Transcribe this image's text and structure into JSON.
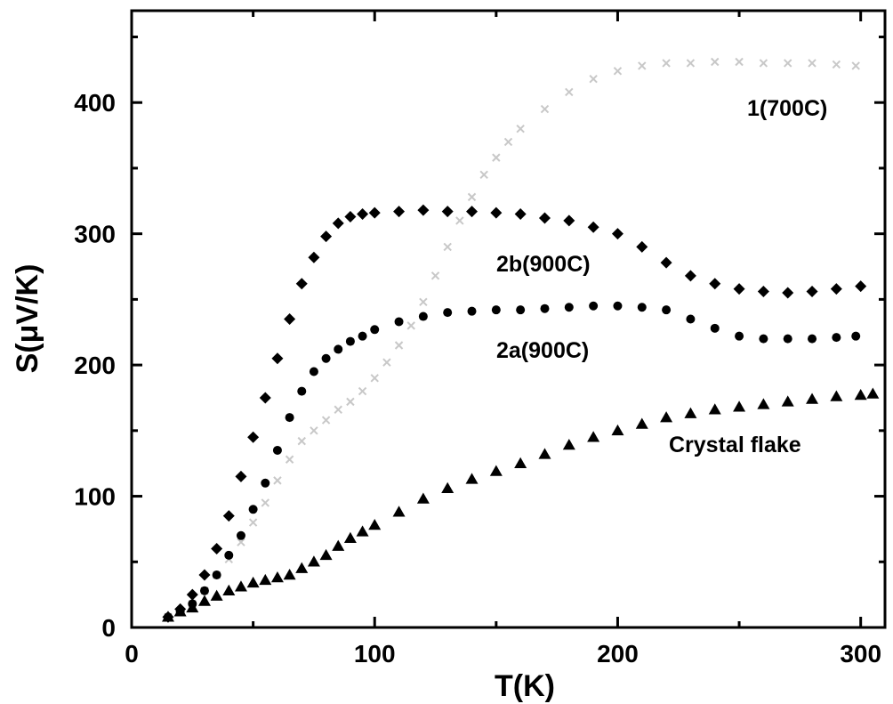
{
  "chart_data": {
    "type": "scatter",
    "title": "",
    "xlabel": "T(K)",
    "ylabel": "S(μV/K)",
    "xlim": [
      0,
      310
    ],
    "ylim": [
      0,
      470
    ],
    "xticks": [
      0,
      100,
      200,
      300
    ],
    "yticks": [
      0,
      100,
      200,
      300,
      400
    ],
    "grid": false,
    "series": [
      {
        "name": "1(700C)",
        "marker": "x",
        "color": "#c8c8c8",
        "label_anchor": [
          250,
          400
        ],
        "points": [
          [
            15,
            8
          ],
          [
            20,
            12
          ],
          [
            25,
            18
          ],
          [
            30,
            28
          ],
          [
            35,
            40
          ],
          [
            40,
            52
          ],
          [
            45,
            65
          ],
          [
            50,
            80
          ],
          [
            55,
            95
          ],
          [
            60,
            112
          ],
          [
            65,
            128
          ],
          [
            70,
            142
          ],
          [
            75,
            150
          ],
          [
            80,
            158
          ],
          [
            85,
            166
          ],
          [
            90,
            172
          ],
          [
            95,
            180
          ],
          [
            100,
            190
          ],
          [
            105,
            202
          ],
          [
            110,
            215
          ],
          [
            115,
            230
          ],
          [
            120,
            248
          ],
          [
            125,
            268
          ],
          [
            130,
            290
          ],
          [
            135,
            310
          ],
          [
            140,
            328
          ],
          [
            145,
            345
          ],
          [
            150,
            358
          ],
          [
            155,
            370
          ],
          [
            160,
            380
          ],
          [
            170,
            395
          ],
          [
            180,
            408
          ],
          [
            190,
            418
          ],
          [
            200,
            424
          ],
          [
            210,
            428
          ],
          [
            220,
            430
          ],
          [
            230,
            430
          ],
          [
            240,
            431
          ],
          [
            250,
            431
          ],
          [
            260,
            430
          ],
          [
            270,
            430
          ],
          [
            280,
            430
          ],
          [
            290,
            429
          ],
          [
            298,
            428
          ]
        ]
      },
      {
        "name": "2b(900C)",
        "marker": "diamond",
        "color": "#000000",
        "label_anchor": [
          150,
          270
        ],
        "points": [
          [
            15,
            8
          ],
          [
            20,
            14
          ],
          [
            25,
            25
          ],
          [
            30,
            40
          ],
          [
            35,
            60
          ],
          [
            40,
            85
          ],
          [
            45,
            115
          ],
          [
            50,
            145
          ],
          [
            55,
            175
          ],
          [
            60,
            205
          ],
          [
            65,
            235
          ],
          [
            70,
            262
          ],
          [
            75,
            282
          ],
          [
            80,
            298
          ],
          [
            85,
            308
          ],
          [
            90,
            313
          ],
          [
            95,
            315
          ],
          [
            100,
            316
          ],
          [
            110,
            317
          ],
          [
            120,
            318
          ],
          [
            130,
            317
          ],
          [
            140,
            317
          ],
          [
            150,
            316
          ],
          [
            160,
            315
          ],
          [
            170,
            312
          ],
          [
            180,
            310
          ],
          [
            190,
            305
          ],
          [
            200,
            300
          ],
          [
            210,
            290
          ],
          [
            220,
            278
          ],
          [
            230,
            268
          ],
          [
            240,
            262
          ],
          [
            250,
            258
          ],
          [
            260,
            256
          ],
          [
            270,
            255
          ],
          [
            280,
            256
          ],
          [
            290,
            258
          ],
          [
            300,
            260
          ]
        ]
      },
      {
        "name": "2a(900C)",
        "marker": "circle",
        "color": "#000000",
        "label_anchor": [
          150,
          210
        ],
        "points": [
          [
            15,
            8
          ],
          [
            20,
            12
          ],
          [
            25,
            18
          ],
          [
            30,
            28
          ],
          [
            35,
            40
          ],
          [
            40,
            55
          ],
          [
            45,
            70
          ],
          [
            50,
            90
          ],
          [
            55,
            110
          ],
          [
            60,
            135
          ],
          [
            65,
            160
          ],
          [
            70,
            180
          ],
          [
            75,
            195
          ],
          [
            80,
            205
          ],
          [
            85,
            212
          ],
          [
            90,
            218
          ],
          [
            95,
            222
          ],
          [
            100,
            227
          ],
          [
            110,
            233
          ],
          [
            120,
            237
          ],
          [
            130,
            240
          ],
          [
            140,
            241
          ],
          [
            150,
            242
          ],
          [
            160,
            242
          ],
          [
            170,
            243
          ],
          [
            180,
            244
          ],
          [
            190,
            245
          ],
          [
            200,
            245
          ],
          [
            210,
            244
          ],
          [
            220,
            242
          ],
          [
            230,
            235
          ],
          [
            240,
            228
          ],
          [
            250,
            222
          ],
          [
            260,
            220
          ],
          [
            270,
            220
          ],
          [
            280,
            220
          ],
          [
            290,
            221
          ],
          [
            298,
            222
          ]
        ]
      },
      {
        "name": "Crystal flake",
        "marker": "triangle",
        "color": "#000000",
        "label_anchor": [
          220,
          140
        ],
        "points": [
          [
            15,
            8
          ],
          [
            20,
            12
          ],
          [
            25,
            15
          ],
          [
            30,
            20
          ],
          [
            35,
            24
          ],
          [
            40,
            28
          ],
          [
            45,
            31
          ],
          [
            50,
            34
          ],
          [
            55,
            36
          ],
          [
            60,
            38
          ],
          [
            65,
            40
          ],
          [
            70,
            45
          ],
          [
            75,
            50
          ],
          [
            80,
            55
          ],
          [
            85,
            62
          ],
          [
            90,
            68
          ],
          [
            95,
            73
          ],
          [
            100,
            78
          ],
          [
            110,
            88
          ],
          [
            120,
            98
          ],
          [
            130,
            106
          ],
          [
            140,
            113
          ],
          [
            150,
            119
          ],
          [
            160,
            125
          ],
          [
            170,
            132
          ],
          [
            180,
            139
          ],
          [
            190,
            145
          ],
          [
            200,
            150
          ],
          [
            210,
            155
          ],
          [
            220,
            160
          ],
          [
            230,
            163
          ],
          [
            240,
            166
          ],
          [
            250,
            168
          ],
          [
            260,
            170
          ],
          [
            270,
            172
          ],
          [
            280,
            174
          ],
          [
            290,
            176
          ],
          [
            300,
            177
          ],
          [
            305,
            178
          ]
        ]
      }
    ]
  }
}
